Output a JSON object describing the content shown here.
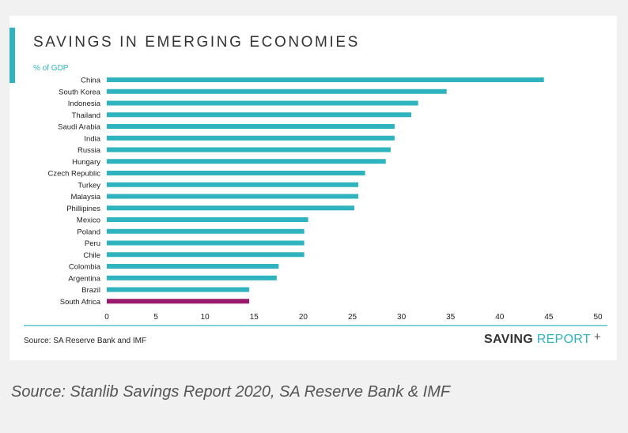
{
  "header": {
    "title": "SAVINGS IN EMERGING ECONOMIES"
  },
  "footer": {
    "source": "Source: SA Reserve Bank and IMF",
    "brand_bold": "SAVING",
    "brand_light": "REPORT",
    "brand_plus": "+"
  },
  "caption": "Source: Stanlib Savings Report 2020, SA Reserve Bank & IMF",
  "colors": {
    "accent": "#2fb4bf",
    "bar": "#2fb4bf",
    "highlight": "#9a1a6b"
  },
  "chart_data": {
    "type": "bar",
    "orientation": "horizontal",
    "ylabel": "% of GDP",
    "categories": [
      "China",
      "South Korea",
      "Indonesia",
      "Thailand",
      "Saudi Arabia",
      "India",
      "Russia",
      "Hungary",
      "Czech Republic",
      "Turkey",
      "Malaysia",
      "Phillipines",
      "Mexico",
      "Poland",
      "Peru",
      "Chile",
      "Colombia",
      "Argentina",
      "Brazil",
      "South Africa"
    ],
    "values": [
      44.5,
      34.6,
      31.7,
      31.0,
      29.3,
      29.3,
      28.9,
      28.4,
      26.3,
      25.6,
      25.6,
      25.2,
      20.5,
      20.1,
      20.1,
      20.1,
      17.5,
      17.3,
      14.5,
      14.5
    ],
    "highlight": "South Africa",
    "xlim": [
      0,
      50
    ],
    "xticks": [
      "0",
      "5",
      "10",
      "15",
      "20",
      "25",
      "30",
      "35",
      "40",
      "45",
      "50"
    ],
    "grid": false,
    "legend": "none"
  }
}
